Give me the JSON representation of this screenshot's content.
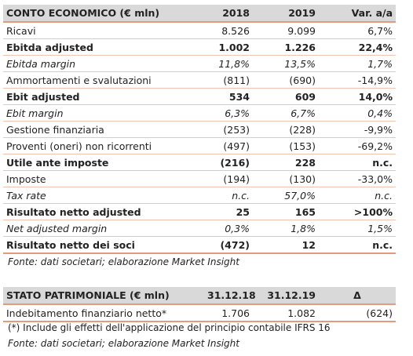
{
  "income_statement": {
    "header": [
      "CONTO ECONOMICO (€ mln)",
      "2018",
      "2019",
      "Var. a/a"
    ],
    "rows": [
      [
        "Ricavi",
        "8.526",
        "9.099",
        "6,7%"
      ],
      [
        "Ebitda adjusted",
        "1.002",
        "1.226",
        "22,4%"
      ],
      [
        "Ebitda margin",
        "11,8%",
        "13,5%",
        "1,7%"
      ],
      [
        "Ammortamenti e svalutazioni",
        "(811)",
        "(690)",
        "-14,9%"
      ],
      [
        "Ebit adjusted",
        "534",
        "609",
        "14,0%"
      ],
      [
        "Ebit margin",
        "6,3%",
        "6,7%",
        "0,4%"
      ],
      [
        "Gestione finanziaria",
        "(253)",
        "(228)",
        "-9,9%"
      ],
      [
        "Proventi (oneri) non ricorrenti",
        "(497)",
        "(153)",
        "-69,2%"
      ],
      [
        "Utile ante imposte",
        "(216)",
        "228",
        "n.c."
      ],
      [
        "Imposte",
        "(194)",
        "(130)",
        "-33,0%"
      ],
      [
        "Tax rate",
        "n.c.",
        "57,0%",
        "n.c."
      ],
      [
        "Risultato netto adjusted",
        "25",
        "165",
        ">100%"
      ],
      [
        "Net adjusted margin",
        "0,3%",
        "1,8%",
        "1,5%"
      ],
      [
        "Risultato netto dei soci",
        "(472)",
        "12",
        "n.c."
      ]
    ],
    "source": "Fonte: dati societari; elaborazione Market Insight"
  },
  "balance_sheet": {
    "header": [
      "STATO PATRIMONIALE (€ mln)",
      "31.12.18",
      "31.12.19",
      "Δ"
    ],
    "rows": [
      [
        "Indebitamento finanziario netto*",
        "1.706",
        "1.082",
        "(624)"
      ]
    ],
    "note": "(*) Include gli effetti dell'applicazione del principio contabile IFRS 16",
    "source": "Fonte: dati societari; elaborazione Market Insight"
  }
}
